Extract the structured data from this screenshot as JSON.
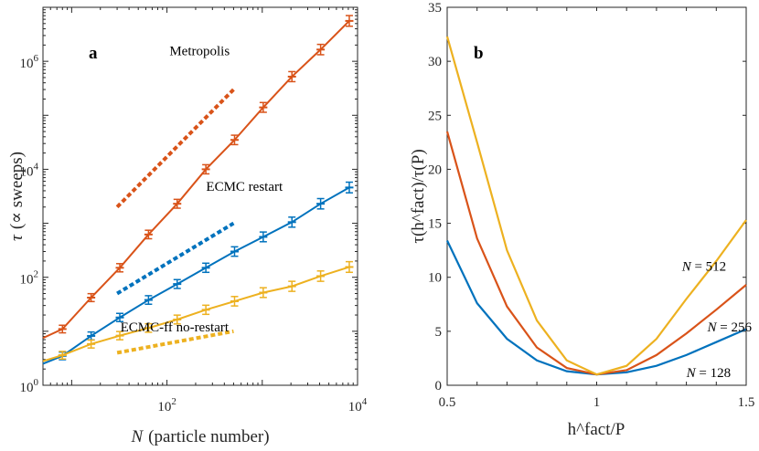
{
  "colors": {
    "blue": "#0072BD",
    "orange": "#D95319",
    "yellow": "#EDB120",
    "axis": "#262626"
  },
  "chart_data": [
    {
      "type": "line",
      "panel_label": "a",
      "xscale": "log",
      "yscale": "log",
      "xlim": [
        5,
        10000
      ],
      "ylim": [
        1,
        10000000
      ],
      "xlabel": {
        "var": "N",
        "text": "(particle number)"
      },
      "ylabel": {
        "var": "τ",
        "text": "(∝ sweeps)"
      },
      "xticks": [
        {
          "value": 100,
          "base": "10",
          "exp": "2"
        },
        {
          "value": 10000,
          "base": "10",
          "exp": "4"
        }
      ],
      "yticks": [
        {
          "value": 1,
          "base": "10",
          "exp": "0"
        },
        {
          "value": 100,
          "base": "10",
          "exp": "2"
        },
        {
          "value": 10000,
          "base": "10",
          "exp": "4"
        },
        {
          "value": 1000000,
          "base": "10",
          "exp": "6"
        }
      ],
      "series": [
        {
          "name": "Metropolis",
          "color": "orange",
          "x": [
            5,
            8,
            16,
            32,
            64,
            128,
            256,
            512,
            1024,
            2048,
            4096,
            8192
          ],
          "y": [
            7.5,
            11,
            42,
            150,
            620,
            2300,
            10000,
            35000,
            140000,
            520000,
            1650000,
            5600000
          ]
        },
        {
          "name": "ECMC restart",
          "color": "blue",
          "x": [
            5,
            8,
            16,
            32,
            64,
            128,
            256,
            512,
            1024,
            2048,
            4096,
            8192
          ],
          "y": [
            2.5,
            3.5,
            8.2,
            18,
            38,
            75,
            150,
            300,
            560,
            1050,
            2300,
            4600
          ]
        },
        {
          "name": "ECMC-ff no-restart",
          "color": "yellow",
          "x": [
            5,
            8,
            16,
            32,
            64,
            128,
            256,
            512,
            1024,
            2048,
            4096,
            8192
          ],
          "y": [
            2.8,
            3.6,
            5.8,
            8.3,
            11.5,
            16.5,
            25,
            36,
            52,
            68,
            105,
            155
          ]
        }
      ],
      "reference_lines": [
        {
          "color": "orange",
          "x": [
            30,
            500
          ],
          "y": [
            2000,
            300000
          ]
        },
        {
          "color": "blue",
          "x": [
            30,
            500
          ],
          "y": [
            50,
            1000
          ]
        },
        {
          "color": "yellow",
          "x": [
            30,
            500
          ],
          "y": [
            4,
            10
          ]
        }
      ],
      "annotations": [
        {
          "text": "Metropolis",
          "x": 220,
          "y": 1300000
        },
        {
          "text": "ECMC restart",
          "x": 650,
          "y": 4000
        },
        {
          "text": "ECMC-ff no-restart",
          "x": 120,
          "y": 10
        }
      ]
    },
    {
      "type": "line",
      "panel_label": "b",
      "xlim": [
        0.5,
        1.5
      ],
      "ylim": [
        0,
        35
      ],
      "xlabel": "h^fact/P",
      "ylabel": "τ(h^fact)/τ(P)",
      "xticks": [
        {
          "value": 0.5,
          "label": "0.5"
        },
        {
          "value": 1,
          "label": "1"
        },
        {
          "value": 1.5,
          "label": "1.5"
        }
      ],
      "yticks": [
        {
          "value": 0,
          "label": "0"
        },
        {
          "value": 5,
          "label": "5"
        },
        {
          "value": 10,
          "label": "10"
        },
        {
          "value": 15,
          "label": "15"
        },
        {
          "value": 20,
          "label": "20"
        },
        {
          "value": 25,
          "label": "25"
        },
        {
          "value": 30,
          "label": "30"
        },
        {
          "value": 35,
          "label": "35"
        }
      ],
      "series": [
        {
          "name": "N = 128",
          "color": "blue",
          "x": [
            0.5,
            0.6,
            0.7,
            0.8,
            0.9,
            1.0,
            1.1,
            1.2,
            1.3,
            1.4,
            1.5
          ],
          "y": [
            13.4,
            7.6,
            4.3,
            2.3,
            1.3,
            1.0,
            1.2,
            1.8,
            2.8,
            4.0,
            5.2
          ]
        },
        {
          "name": "N = 256",
          "color": "orange",
          "x": [
            0.5,
            0.6,
            0.7,
            0.8,
            0.9,
            1.0,
            1.1,
            1.2,
            1.3,
            1.4,
            1.5
          ],
          "y": [
            23.5,
            13.6,
            7.3,
            3.5,
            1.6,
            1.0,
            1.4,
            2.8,
            4.8,
            7.0,
            9.3
          ]
        },
        {
          "name": "N = 512",
          "color": "yellow",
          "x": [
            0.5,
            0.6,
            0.7,
            0.8,
            0.9,
            1.0,
            1.1,
            1.2,
            1.3,
            1.4,
            1.5
          ],
          "y": [
            32.3,
            22.5,
            12.5,
            6.0,
            2.3,
            1.0,
            1.8,
            4.3,
            8.0,
            11.5,
            15.3
          ]
        }
      ],
      "annotations": [
        {
          "var": "N",
          "text": " = 512",
          "x": 1.285,
          "y": 10.6
        },
        {
          "var": "N",
          "text": " = 256",
          "x": 1.37,
          "y": 5.0
        },
        {
          "var": "N",
          "text": " = 128",
          "x": 1.3,
          "y": 0.75
        }
      ]
    }
  ]
}
